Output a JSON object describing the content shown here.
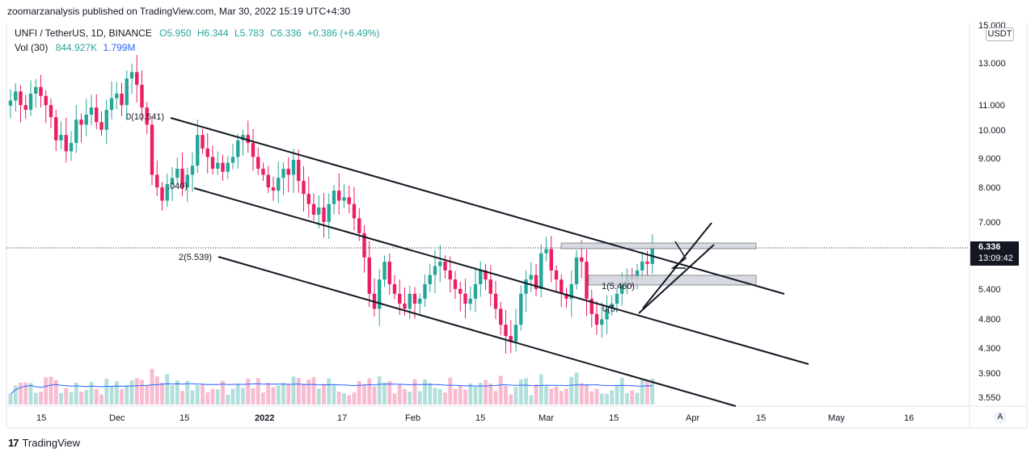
{
  "header": {
    "published": "zoomarzanalysis published on TradingView.com, Mar 30, 2022 15:19 UTC+4:30"
  },
  "legend": {
    "symbol": "UNFI / TetherUS, 1D, BINANCE",
    "open": "O5.950",
    "high": "H6.344",
    "low": "L5.783",
    "close": "C6.336",
    "change": "+0.386 (+6.49%)",
    "volume_label": "Vol (30)",
    "volume_value": "844.927K",
    "volume_ma": "1.799M"
  },
  "price_axis": {
    "currency": "USDT",
    "current_price": "6.336",
    "countdown": "13:09:42"
  },
  "footer": {
    "brand": "TradingView"
  },
  "corner_button": "A",
  "colors": {
    "up": "#26a69a",
    "down": "#e91e63",
    "vol_up": "#b2dfdb",
    "vol_down": "#f8bbd0",
    "ma": "#2962ff"
  },
  "chart_data": {
    "type": "candlestick",
    "x_tick_labels": [
      "15",
      "Dec",
      "15",
      "2022",
      "17",
      "Feb",
      "15",
      "Mar",
      "15",
      "Apr",
      "15",
      "May",
      "16"
    ],
    "y_tick_labels": [
      "15.000",
      "13.000",
      "11.000",
      "10.000",
      "9.000",
      "8.000",
      "7.000",
      "5.400",
      "4.800",
      "4.300",
      "3.900",
      "3.550"
    ],
    "y_scale": "log",
    "grid": false,
    "annotations": [
      {
        "text": "0(10.541)"
      },
      {
        "text": ".040)"
      },
      {
        "text": "2(5.539)"
      },
      {
        "text": "1(5.460)"
      },
      {
        "text": "0(5."
      }
    ],
    "closes_approx": [
      11.2,
      11.6,
      11.0,
      10.8,
      11.5,
      11.8,
      11.4,
      11.0,
      10.5,
      9.6,
      9.8,
      9.2,
      9.5,
      10.4,
      10.2,
      10.6,
      10.9,
      10.3,
      10.0,
      10.8,
      11.3,
      11.5,
      11.0,
      12.2,
      12.5,
      11.9,
      10.9,
      10.2,
      8.4,
      8.0,
      7.6,
      8.1,
      8.3,
      8.6,
      8.0,
      8.4,
      8.7,
      9.8,
      9.3,
      9.0,
      8.6,
      8.8,
      8.5,
      8.8,
      9.0,
      9.6,
      9.8,
      9.5,
      9.0,
      8.6,
      8.4,
      8.0,
      7.9,
      8.3,
      8.6,
      8.4,
      8.9,
      8.2,
      7.8,
      7.5,
      7.2,
      7.4,
      7.0,
      7.5,
      7.9,
      7.6,
      7.7,
      7.5,
      7.1,
      6.7,
      6.1,
      5.3,
      5.0,
      5.6,
      6.0,
      5.5,
      5.3,
      5.1,
      5.0,
      5.3,
      5.1,
      5.2,
      5.5,
      5.7,
      5.9,
      6.0,
      5.8,
      5.6,
      5.4,
      5.3,
      5.1,
      5.2,
      5.5,
      5.8,
      5.6,
      5.3,
      5.0,
      4.7,
      4.5,
      4.4,
      4.7,
      5.3,
      5.6,
      5.7,
      5.4,
      6.2,
      6.3,
      5.8,
      5.6,
      5.3,
      5.2,
      5.5,
      6.1,
      6.0,
      5.2,
      4.9,
      4.7,
      4.8,
      5.0,
      5.1,
      5.3,
      5.5,
      5.7,
      5.6,
      5.8,
      6.0,
      5.95,
      6.336
    ]
  }
}
